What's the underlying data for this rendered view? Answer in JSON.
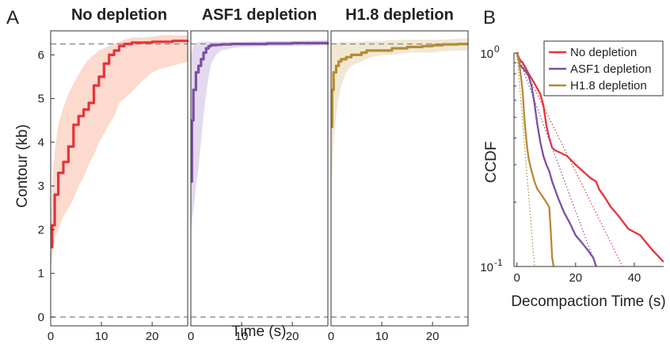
{
  "figure": {
    "panel_labels": [
      "A",
      "B"
    ],
    "shared_ylabel": "Contour (kb)",
    "shared_xlabel": "Time (s)"
  },
  "chart_data": [
    {
      "type": "line",
      "title": "No depletion",
      "color": "#e8333a",
      "band_color": "#fcd4c4",
      "xlim": [
        0,
        27
      ],
      "ylim": [
        -0.2,
        6.55
      ],
      "xticks": [
        0,
        10,
        20
      ],
      "yticks": [
        0,
        1,
        2,
        3,
        4,
        5,
        6
      ],
      "reference_lines": [
        0,
        6.25
      ],
      "x": [
        0,
        0.3,
        0.8,
        1.5,
        2.5,
        3.5,
        4.5,
        5.5,
        6.5,
        7.5,
        8.5,
        9.5,
        10.5,
        11.5,
        12.5,
        13.5,
        14.5,
        16,
        18,
        20,
        22,
        24,
        27
      ],
      "y": [
        1.6,
        2.1,
        2.8,
        3.3,
        3.55,
        3.9,
        4.4,
        4.6,
        4.75,
        4.9,
        5.3,
        5.5,
        5.8,
        6.0,
        6.1,
        6.2,
        6.25,
        6.28,
        6.28,
        6.3,
        6.3,
        6.32,
        6.33
      ],
      "y_low": [
        1.1,
        1.4,
        1.8,
        2.0,
        2.3,
        2.5,
        2.7,
        3.0,
        3.2,
        3.5,
        3.7,
        4.0,
        4.2,
        4.4,
        4.6,
        4.9,
        5.0,
        5.15,
        5.4,
        5.6,
        5.7,
        5.75,
        5.85
      ],
      "y_high": [
        1.8,
        3.0,
        3.8,
        4.4,
        4.8,
        5.1,
        5.35,
        5.55,
        5.75,
        5.9,
        6.0,
        6.1,
        6.15,
        6.2,
        6.25,
        6.3,
        6.35,
        6.4,
        6.4,
        6.42,
        6.45,
        6.45,
        6.45
      ]
    },
    {
      "type": "line",
      "title": "ASF1 depletion",
      "color": "#7b4fa2",
      "band_color": "#dfd3ec",
      "xlim": [
        0,
        27
      ],
      "ylim": [
        -0.2,
        6.55
      ],
      "xticks": [
        0,
        10,
        20
      ],
      "reference_lines": [
        0,
        6.25
      ],
      "x": [
        0,
        0.2,
        0.5,
        1,
        1.5,
        2,
        2.5,
        3,
        3.5,
        4,
        5,
        6,
        8,
        10,
        15,
        20,
        27
      ],
      "y": [
        3.1,
        4.5,
        5.2,
        5.6,
        5.75,
        5.9,
        6.05,
        6.15,
        6.2,
        6.22,
        6.23,
        6.24,
        6.25,
        6.25,
        6.26,
        6.27,
        6.28
      ],
      "y_low": [
        1.9,
        2.2,
        2.4,
        3.0,
        3.4,
        4.0,
        4.6,
        5.1,
        5.5,
        5.8,
        6.0,
        6.1,
        6.15,
        6.18,
        6.2,
        6.2,
        6.22
      ],
      "y_high": [
        6.0,
        6.1,
        6.2,
        6.25,
        6.3,
        6.3,
        6.3,
        6.3,
        6.3,
        6.3,
        6.3,
        6.3,
        6.3,
        6.3,
        6.32,
        6.32,
        6.34
      ]
    },
    {
      "type": "line",
      "title": "H1.8 depletion",
      "color": "#b58b33",
      "band_color": "#efe4cd",
      "xlim": [
        0,
        27
      ],
      "ylim": [
        -0.2,
        6.55
      ],
      "xticks": [
        0,
        10,
        20
      ],
      "reference_lines": [
        0,
        6.25
      ],
      "x": [
        0,
        0.2,
        0.5,
        1,
        1.5,
        2,
        3,
        4,
        5,
        6,
        7,
        8,
        10,
        12,
        15,
        18,
        20,
        22,
        25,
        27
      ],
      "y": [
        4.35,
        5.2,
        5.6,
        5.75,
        5.85,
        5.9,
        5.95,
        6.0,
        6.0,
        6.05,
        6.1,
        6.1,
        6.1,
        6.15,
        6.18,
        6.2,
        6.22,
        6.24,
        6.25,
        6.25
      ],
      "y_low": [
        2.1,
        3.2,
        4.0,
        4.6,
        5.0,
        5.3,
        5.6,
        5.75,
        5.8,
        5.85,
        5.9,
        5.95,
        6.0,
        6.0,
        6.05,
        6.05,
        6.05,
        6.08,
        6.1,
        6.1
      ],
      "y_high": [
        6.15,
        6.2,
        6.25,
        6.28,
        6.28,
        6.3,
        6.3,
        6.3,
        6.3,
        6.3,
        6.32,
        6.32,
        6.32,
        6.34,
        6.35,
        6.35,
        6.35,
        6.35,
        6.37,
        6.38
      ]
    },
    {
      "type": "line",
      "xlabel": "Decompaction Time (s)",
      "ylabel": "CCDF",
      "y_scale": "log",
      "xlim": [
        -1,
        50
      ],
      "ylim": [
        0.1,
        1
      ],
      "xticks": [
        0,
        20,
        40
      ],
      "ytick_labels": [
        "10^0",
        "10^-1"
      ],
      "legend_position": "top-right",
      "series": [
        {
          "name": "No depletion",
          "color": "#e8333a",
          "x": [
            0,
            1,
            2,
            3,
            4,
            5,
            6,
            7,
            8,
            9,
            10,
            11,
            12,
            13,
            15,
            17,
            20,
            25,
            27,
            28,
            30,
            32,
            35,
            38,
            42,
            46,
            50
          ],
          "y": [
            1.0,
            0.93,
            0.9,
            0.85,
            0.8,
            0.76,
            0.72,
            0.68,
            0.64,
            0.57,
            0.46,
            0.4,
            0.36,
            0.35,
            0.34,
            0.33,
            0.3,
            0.26,
            0.25,
            0.23,
            0.21,
            0.19,
            0.17,
            0.15,
            0.14,
            0.12,
            0.105
          ],
          "fit_x": [
            0,
            36
          ],
          "fit_y": [
            1.0,
            0.1
          ]
        },
        {
          "name": "ASF1 depletion",
          "color": "#7b4fa2",
          "x": [
            0,
            1,
            2,
            3,
            4,
            5,
            6,
            7,
            8,
            9,
            10,
            11,
            12,
            14,
            16,
            18,
            20,
            22,
            24,
            26,
            27
          ],
          "y": [
            1.0,
            0.88,
            0.85,
            0.82,
            0.78,
            0.7,
            0.58,
            0.46,
            0.38,
            0.33,
            0.3,
            0.28,
            0.25,
            0.21,
            0.18,
            0.16,
            0.14,
            0.13,
            0.12,
            0.11,
            0.1
          ],
          "fit_x": [
            0,
            27
          ],
          "fit_y": [
            1.0,
            0.1
          ]
        },
        {
          "name": "H1.8 depletion",
          "color": "#b58b33",
          "x": [
            0,
            0.5,
            1,
            1.5,
            2,
            2.5,
            3,
            3.5,
            4,
            5,
            6,
            7,
            8,
            9,
            10,
            11,
            11.5,
            12,
            12.5
          ],
          "y": [
            1.0,
            0.95,
            0.85,
            0.75,
            0.65,
            0.5,
            0.42,
            0.36,
            0.32,
            0.28,
            0.25,
            0.23,
            0.22,
            0.21,
            0.2,
            0.19,
            0.15,
            0.11,
            0.1
          ],
          "fit_x": [
            0,
            6
          ],
          "fit_y": [
            1.0,
            0.1
          ]
        }
      ]
    }
  ]
}
